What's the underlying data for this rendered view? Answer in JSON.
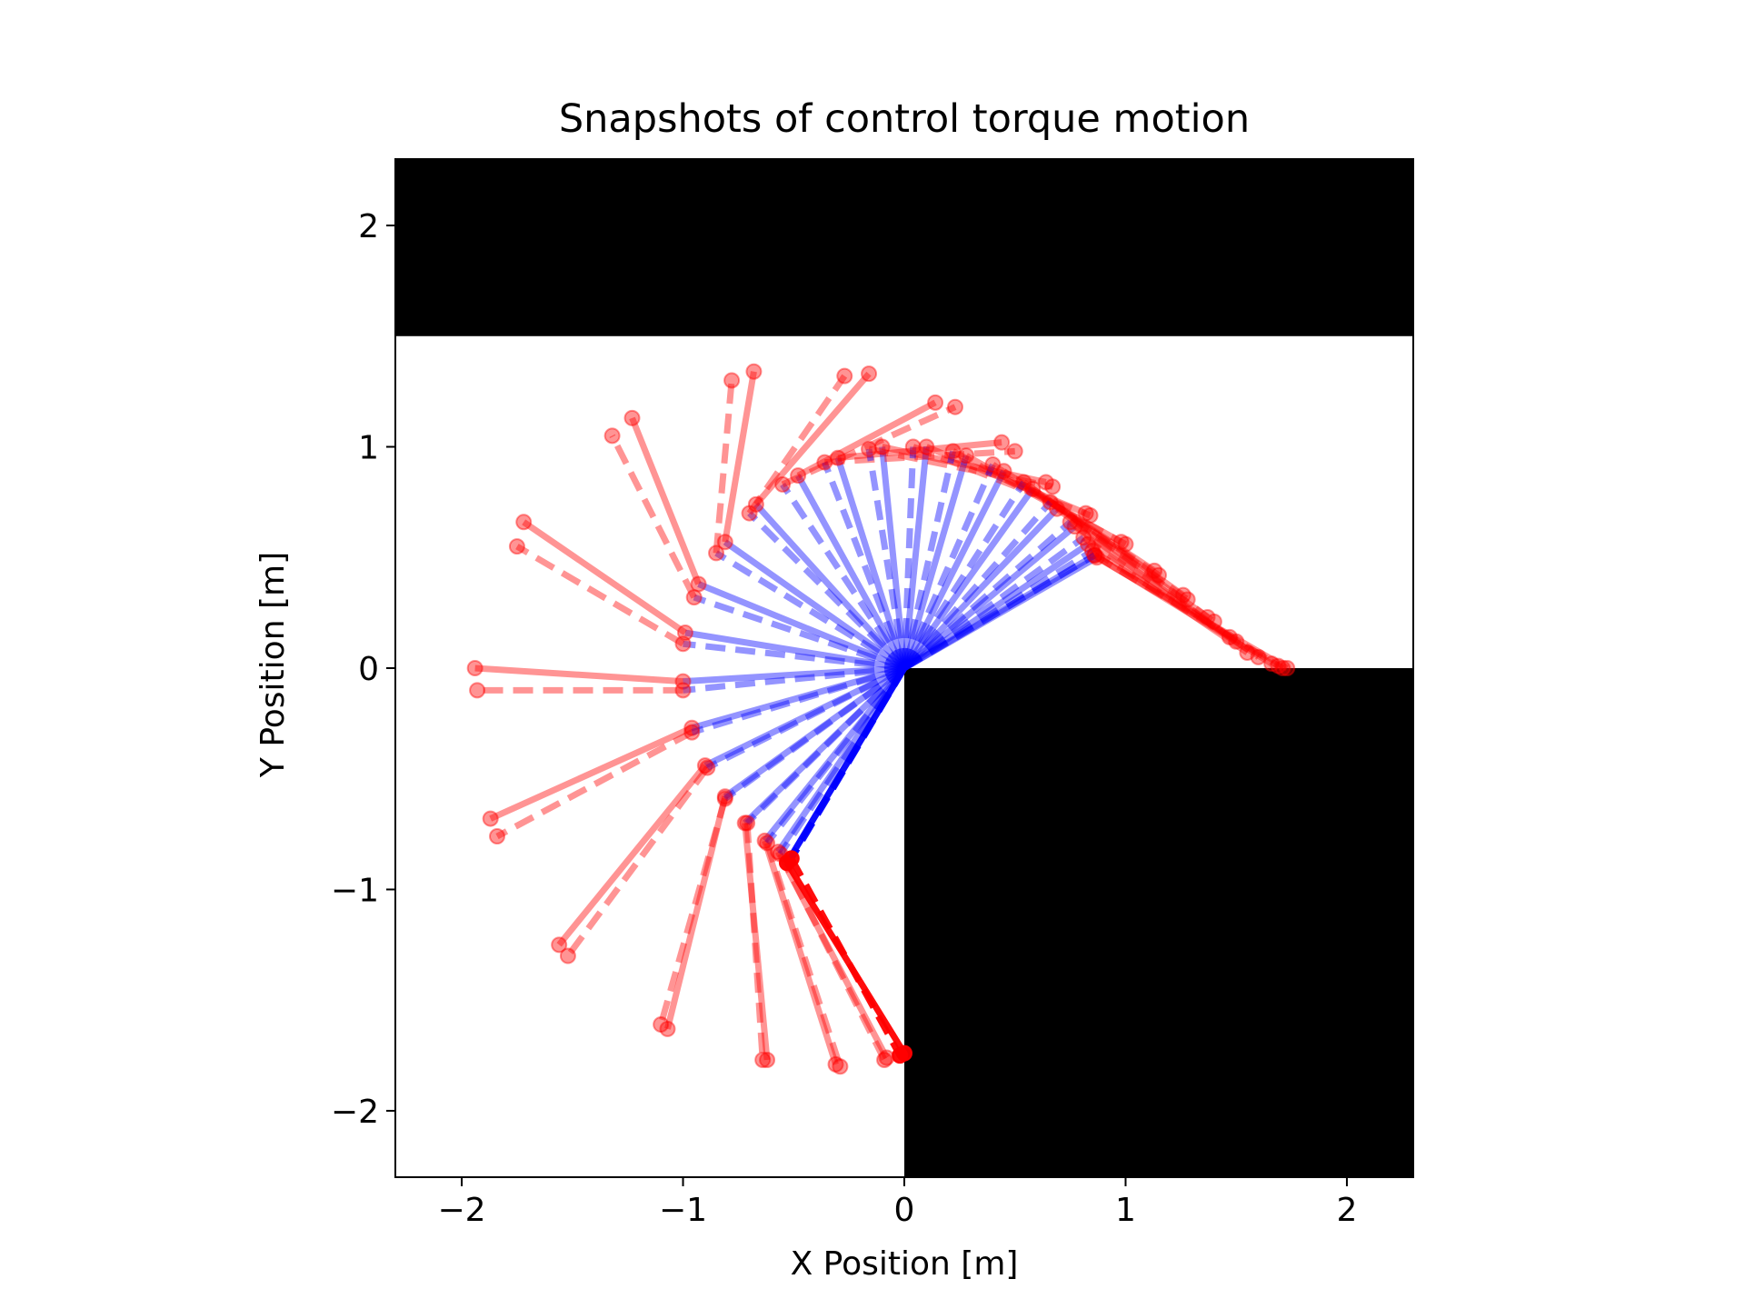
{
  "chart_data": {
    "type": "line",
    "title": "Snapshots of control torque motion",
    "xlabel": "X Position [m]",
    "ylabel": "Y Position [m]",
    "xlim": [
      -2.3,
      2.3
    ],
    "ylim": [
      -2.3,
      2.3
    ],
    "xticks": [
      -2,
      -1,
      0,
      1,
      2
    ],
    "yticks": [
      -2,
      -1,
      0,
      1,
      2
    ],
    "xtick_labels": [
      "−2",
      "−1",
      "0",
      "1",
      "2"
    ],
    "ytick_labels": [
      "−2",
      "−1",
      "0",
      "1",
      "2"
    ],
    "grid": false,
    "colors": {
      "link1": "#0000ff",
      "link2": "#ff0000",
      "obstacle": "#000000"
    },
    "obstacles": [
      {
        "x": [
          -2.3,
          2.3
        ],
        "y": [
          1.5,
          2.3
        ]
      },
      {
        "x": [
          0.0,
          2.3
        ],
        "y": [
          -2.3,
          0.0
        ]
      }
    ],
    "series": [
      {
        "style": "solid",
        "snapshots": [
          {
            "elbow": [
              -0.53,
              -0.88
            ],
            "tip": [
              0.0,
              -1.74
            ]
          },
          {
            "elbow": [
              -0.57,
              -0.83
            ],
            "tip": [
              -0.08,
              -1.76
            ]
          },
          {
            "elbow": [
              -0.63,
              -0.78
            ],
            "tip": [
              -0.31,
              -1.79
            ]
          },
          {
            "elbow": [
              -0.72,
              -0.7
            ],
            "tip": [
              -0.62,
              -1.77
            ]
          },
          {
            "elbow": [
              -0.81,
              -0.58
            ],
            "tip": [
              -1.07,
              -1.63
            ]
          },
          {
            "elbow": [
              -0.9,
              -0.44
            ],
            "tip": [
              -1.56,
              -1.25
            ]
          },
          {
            "elbow": [
              -0.96,
              -0.27
            ],
            "tip": [
              -1.87,
              -0.68
            ]
          },
          {
            "elbow": [
              -1.0,
              -0.06
            ],
            "tip": [
              -1.94,
              0.0
            ]
          },
          {
            "elbow": [
              -0.99,
              0.16
            ],
            "tip": [
              -1.72,
              0.66
            ]
          },
          {
            "elbow": [
              -0.93,
              0.38
            ],
            "tip": [
              -1.23,
              1.13
            ]
          },
          {
            "elbow": [
              -0.81,
              0.57
            ],
            "tip": [
              -0.68,
              1.34
            ]
          },
          {
            "elbow": [
              -0.67,
              0.74
            ],
            "tip": [
              -0.16,
              1.33
            ]
          },
          {
            "elbow": [
              -0.48,
              0.87
            ],
            "tip": [
              0.14,
              1.2
            ]
          },
          {
            "elbow": [
              -0.3,
              0.95
            ],
            "tip": [
              0.44,
              1.02
            ]
          },
          {
            "elbow": [
              -0.1,
              1.0
            ],
            "tip": [
              0.64,
              0.84
            ]
          },
          {
            "elbow": [
              0.1,
              1.0
            ],
            "tip": [
              0.82,
              0.7
            ]
          },
          {
            "elbow": [
              0.28,
              0.96
            ],
            "tip": [
              0.98,
              0.57
            ]
          },
          {
            "elbow": [
              0.45,
              0.89
            ],
            "tip": [
              1.13,
              0.44
            ]
          },
          {
            "elbow": [
              0.58,
              0.81
            ],
            "tip": [
              1.26,
              0.33
            ]
          },
          {
            "elbow": [
              0.69,
              0.72
            ],
            "tip": [
              1.37,
              0.23
            ]
          },
          {
            "elbow": [
              0.77,
              0.64
            ],
            "tip": [
              1.47,
              0.14
            ]
          },
          {
            "elbow": [
              0.83,
              0.56
            ],
            "tip": [
              1.55,
              0.07
            ]
          },
          {
            "elbow": [
              0.86,
              0.51
            ],
            "tip": [
              1.66,
              0.02
            ]
          },
          {
            "elbow": [
              0.87,
              0.5
            ],
            "tip": [
              1.73,
              0.0
            ]
          }
        ]
      },
      {
        "style": "dashed",
        "snapshots": [
          {
            "elbow": [
              -0.51,
              -0.86
            ],
            "tip": [
              -0.02,
              -1.75
            ]
          },
          {
            "elbow": [
              -0.56,
              -0.84
            ],
            "tip": [
              -0.09,
              -1.77
            ]
          },
          {
            "elbow": [
              -0.62,
              -0.79
            ],
            "tip": [
              -0.29,
              -1.8
            ]
          },
          {
            "elbow": [
              -0.71,
              -0.7
            ],
            "tip": [
              -0.64,
              -1.77
            ]
          },
          {
            "elbow": [
              -0.81,
              -0.59
            ],
            "tip": [
              -1.1,
              -1.61
            ]
          },
          {
            "elbow": [
              -0.89,
              -0.45
            ],
            "tip": [
              -1.52,
              -1.3
            ]
          },
          {
            "elbow": [
              -0.96,
              -0.29
            ],
            "tip": [
              -1.84,
              -0.76
            ]
          },
          {
            "elbow": [
              -1.0,
              -0.1
            ],
            "tip": [
              -1.93,
              -0.1
            ]
          },
          {
            "elbow": [
              -1.0,
              0.11
            ],
            "tip": [
              -1.75,
              0.55
            ]
          },
          {
            "elbow": [
              -0.95,
              0.32
            ],
            "tip": [
              -1.32,
              1.05
            ]
          },
          {
            "elbow": [
              -0.85,
              0.52
            ],
            "tip": [
              -0.78,
              1.3
            ]
          },
          {
            "elbow": [
              -0.7,
              0.7
            ],
            "tip": [
              -0.27,
              1.32
            ]
          },
          {
            "elbow": [
              -0.55,
              0.83
            ],
            "tip": [
              0.23,
              1.18
            ]
          },
          {
            "elbow": [
              -0.36,
              0.93
            ],
            "tip": [
              0.5,
              0.98
            ]
          },
          {
            "elbow": [
              -0.16,
              0.99
            ],
            "tip": [
              0.67,
              0.82
            ]
          },
          {
            "elbow": [
              0.04,
              1.0
            ],
            "tip": [
              0.84,
              0.69
            ]
          },
          {
            "elbow": [
              0.22,
              0.98
            ],
            "tip": [
              1.0,
              0.56
            ]
          },
          {
            "elbow": [
              0.4,
              0.92
            ],
            "tip": [
              1.15,
              0.42
            ]
          },
          {
            "elbow": [
              0.54,
              0.84
            ],
            "tip": [
              1.28,
              0.31
            ]
          },
          {
            "elbow": [
              0.66,
              0.75
            ],
            "tip": [
              1.4,
              0.21
            ]
          },
          {
            "elbow": [
              0.75,
              0.66
            ],
            "tip": [
              1.5,
              0.12
            ]
          },
          {
            "elbow": [
              0.81,
              0.59
            ],
            "tip": [
              1.6,
              0.05
            ]
          },
          {
            "elbow": [
              0.85,
              0.53
            ],
            "tip": [
              1.69,
              0.01
            ]
          },
          {
            "elbow": [
              0.86,
              0.51
            ],
            "tip": [
              1.71,
              0.0
            ]
          }
        ]
      }
    ]
  }
}
